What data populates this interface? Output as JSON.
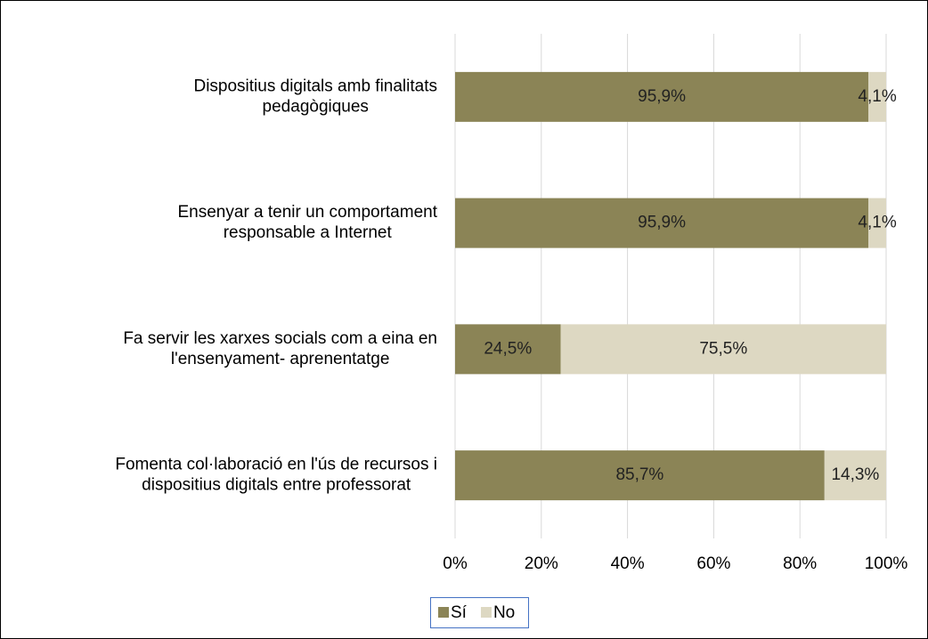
{
  "chart_data": {
    "type": "stacked-bar-horizontal",
    "categories": [
      [
        "Dispositius digitals amb finalitats",
        "pedagògiques"
      ],
      [
        "Ensenyar a tenir un comportament",
        "responsable a Internet"
      ],
      [
        "Fa servir les xarxes socials com a eina en",
        "l'ensenyament- aprenentatge"
      ],
      [
        "Fomenta col·laboració en l'ús de recursos i",
        "dispositius digitals entre professorat"
      ]
    ],
    "series": [
      {
        "name": "Sí",
        "color": "#8b8456",
        "values": [
          95.9,
          95.9,
          24.5,
          85.7
        ],
        "value_labels": [
          "95,9%",
          "95,9%",
          "24,5%",
          "85,7%"
        ]
      },
      {
        "name": "No",
        "color": "#ddd8c2",
        "values": [
          4.1,
          4.1,
          75.5,
          14.3
        ],
        "value_labels": [
          "4,1%",
          "4,1%",
          "75,5%",
          "14,3%"
        ]
      }
    ],
    "xlim": [
      0,
      100
    ],
    "xticks": [
      {
        "value": 0,
        "label": "0%"
      },
      {
        "value": 20,
        "label": "20%"
      },
      {
        "value": 40,
        "label": "40%"
      },
      {
        "value": 60,
        "label": "60%"
      },
      {
        "value": 80,
        "label": "80%"
      },
      {
        "value": 100,
        "label": "100%"
      }
    ],
    "grid": true,
    "legend": "bottom"
  }
}
